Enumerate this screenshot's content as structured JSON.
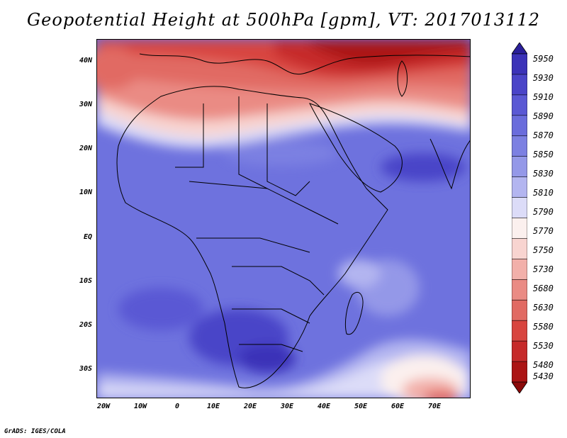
{
  "title": "Geopotential Height at 500hPa [gpm], VT: 2017013112",
  "credit": "GrADS: IGES/COLA",
  "map": {
    "lat_labels": [
      "40N",
      "30N",
      "20N",
      "10N",
      "EQ",
      "10S",
      "20S",
      "30S"
    ],
    "lon_labels": [
      "20W",
      "10W",
      "0",
      "10E",
      "20E",
      "30E",
      "40E",
      "50E",
      "60E",
      "70E"
    ],
    "lon_range": [
      -22,
      80
    ],
    "lat_range": [
      -36,
      45
    ]
  },
  "colorbar": {
    "levels_top_to_bottom": [
      "5950",
      "5930",
      "5910",
      "5890",
      "5870",
      "5850",
      "5830",
      "5810",
      "5790",
      "5770",
      "5750",
      "5730",
      "5680",
      "5630",
      "5580",
      "5530",
      "5480",
      "5430"
    ],
    "colors_top_to_bottom": [
      "#2a1f9a",
      "#3b32b8",
      "#4a44c8",
      "#5a58d4",
      "#6a6cdc",
      "#7c80e2",
      "#9498e8",
      "#b3b5f0",
      "#dcdcf8",
      "#fbf0ee",
      "#f8d4d0",
      "#f2b0aa",
      "#ea8b84",
      "#e16a63",
      "#d8453f",
      "#c62a2a",
      "#ab1414",
      "#8b0a0a"
    ]
  }
}
